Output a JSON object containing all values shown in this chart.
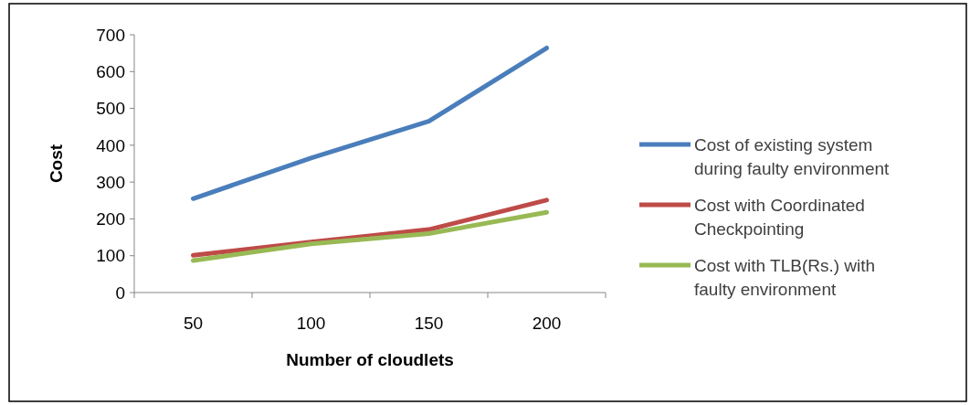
{
  "chart_data": {
    "type": "line",
    "xlabel": "Number of cloudlets",
    "ylabel": "Cost",
    "categories": [
      "50",
      "100",
      "150",
      "200"
    ],
    "series": [
      {
        "name": "Cost of existing system during faulty environment",
        "color": "#4a7ebb",
        "values": [
          255,
          365,
          465,
          664
        ]
      },
      {
        "name": "Cost with Coordinated Checkpointing",
        "color": "#be4b48",
        "values": [
          101,
          137,
          171,
          251
        ]
      },
      {
        "name": "Cost with TLB(Rs.) with faulty environment",
        "color": "#98b954",
        "values": [
          87,
          132,
          160,
          218
        ]
      }
    ],
    "ylim": [
      0,
      700
    ],
    "yticks": [
      0,
      100,
      200,
      300,
      400,
      500,
      600,
      700
    ],
    "grid": false,
    "legend": "right",
    "marker": "none",
    "line_style": "solid"
  }
}
